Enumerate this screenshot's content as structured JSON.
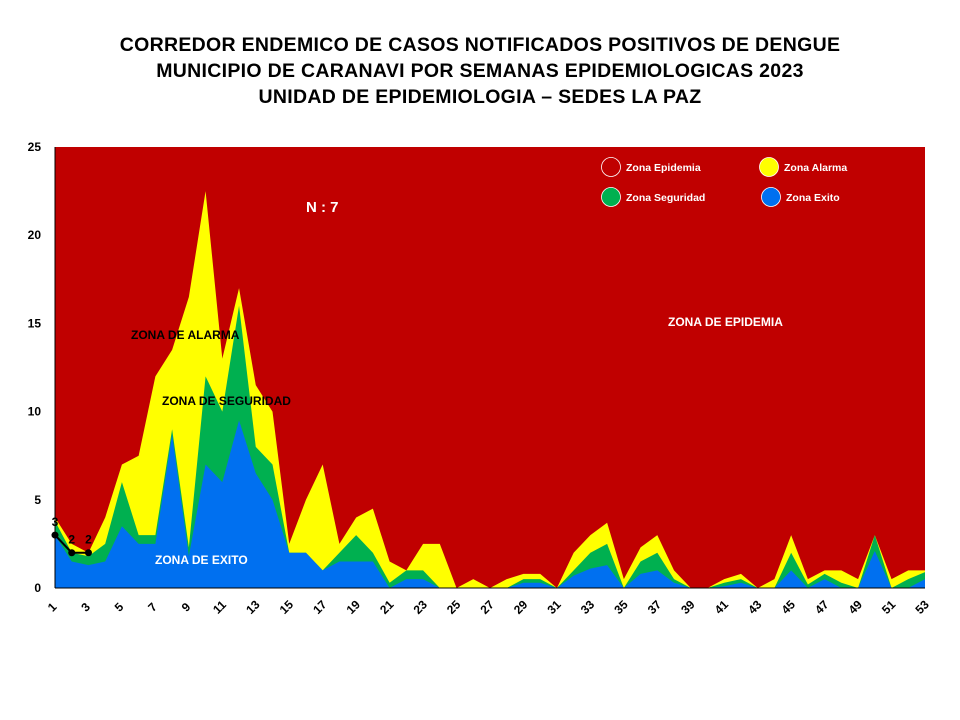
{
  "title": {
    "line1": "CORREDOR ENDEMICO DE CASOS NOTIFICADOS POSITIVOS DE DENGUE",
    "line2": "MUNICIPIO DE CARANAVI POR SEMANAS EPIDEMIOLOGICAS 2023",
    "line3": "UNIDAD DE EPIDEMIOLOGIA – SEDES LA PAZ"
  },
  "annotations": {
    "n_label": "N : 7",
    "zona_alarma": "ZONA DE ALARMA",
    "zona_seguridad": "ZONA DE  SEGURIDAD",
    "zona_exito": "ZONA DE  EXITO",
    "zona_epidemia": "ZONA DE EPIDEMIA"
  },
  "colors": {
    "epidemia": "#c00000",
    "alarma": "#ffff00",
    "seguridad": "#00b050",
    "exito": "#0070f0",
    "cases_line": "#000000"
  },
  "chart_data": {
    "type": "area",
    "ylim": [
      0,
      25
    ],
    "yticks": [
      0,
      5,
      10,
      15,
      20,
      25
    ],
    "xlim": [
      1,
      53
    ],
    "xtick_labels": [
      "1",
      "3",
      "5",
      "7",
      "9",
      "11",
      "13",
      "15",
      "17",
      "19",
      "21",
      "23",
      "25",
      "27",
      "29",
      "31",
      "33",
      "35",
      "37",
      "39",
      "41",
      "43",
      "45",
      "47",
      "49",
      "51",
      "53"
    ],
    "x": [
      1,
      2,
      3,
      4,
      5,
      6,
      7,
      8,
      9,
      10,
      11,
      12,
      13,
      14,
      15,
      16,
      17,
      18,
      19,
      20,
      21,
      22,
      23,
      24,
      25,
      26,
      27,
      28,
      29,
      30,
      31,
      32,
      33,
      34,
      35,
      36,
      37,
      38,
      39,
      40,
      41,
      42,
      43,
      44,
      45,
      46,
      47,
      48,
      49,
      50,
      51,
      52,
      53
    ],
    "legend": [
      {
        "key": "epidemia",
        "label": "Zona Epidemia"
      },
      {
        "key": "alarma",
        "label": "Zona Alarma"
      },
      {
        "key": "seguridad",
        "label": "Zona Seguridad"
      },
      {
        "key": "exito",
        "label": "Zona Exito"
      }
    ],
    "legend_position": "top-right",
    "series": [
      {
        "key": "alarma",
        "values": [
          4,
          2.5,
          2,
          4,
          7,
          7.5,
          12,
          13.5,
          16.5,
          22.5,
          13,
          17,
          11.5,
          10,
          2.5,
          5,
          7,
          2.5,
          4,
          4.5,
          1.5,
          1,
          2.5,
          2.5,
          0,
          0.5,
          0,
          0.5,
          0.8,
          0.8,
          0,
          2,
          3,
          3.7,
          0.5,
          2.3,
          3,
          1,
          0,
          0,
          0.5,
          0.8,
          0,
          0.5,
          3,
          0.5,
          1,
          1,
          0.5,
          3,
          0.5,
          1,
          1
        ]
      },
      {
        "key": "seguridad",
        "values": [
          3.8,
          2,
          1.8,
          2.5,
          6,
          3,
          3,
          9,
          2.3,
          12,
          10,
          16,
          8,
          7,
          2,
          2,
          1,
          2,
          3,
          2,
          0.3,
          1,
          1,
          0,
          0,
          0,
          0,
          0,
          0.5,
          0.5,
          0,
          1,
          2,
          2.5,
          0,
          1.5,
          2,
          0.5,
          0,
          0,
          0.3,
          0.5,
          0,
          0,
          2,
          0.2,
          0.8,
          0.3,
          0,
          3,
          0,
          0.5,
          0.9
        ]
      },
      {
        "key": "exito",
        "values": [
          3,
          1.5,
          1.3,
          1.5,
          3.5,
          2.5,
          2.5,
          8.7,
          1.8,
          7,
          6,
          9.5,
          6.5,
          5,
          2,
          2,
          1,
          1.5,
          1.5,
          1.5,
          0,
          0.5,
          0.5,
          0,
          0,
          0,
          0,
          0,
          0.3,
          0.3,
          0,
          0.7,
          1.1,
          1.3,
          0,
          0.8,
          1,
          0.3,
          0,
          0,
          0.1,
          0.3,
          0,
          0,
          1,
          0,
          0.5,
          0,
          0,
          2.1,
          0,
          0,
          0.5
        ]
      }
    ],
    "cases": {
      "x": [
        1,
        2,
        3
      ],
      "values": [
        3,
        2,
        2
      ],
      "labels": [
        "3",
        "2",
        "2"
      ]
    }
  }
}
